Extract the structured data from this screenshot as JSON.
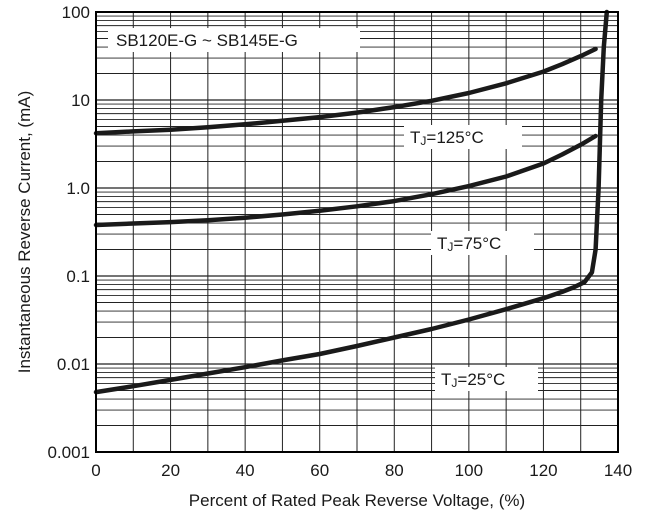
{
  "chart_data": {
    "type": "line",
    "title": "SB120E-G ~ SB145E-G",
    "xlabel": "Percent of Rated Peak Reverse Voltage, (%)",
    "ylabel": "Instantaneous Reverse Current, (mA)",
    "xlim": [
      0,
      140
    ],
    "ylim": [
      0.001,
      100
    ],
    "yscale": "log",
    "grid": true,
    "x_ticks": [
      "0",
      "20",
      "40",
      "60",
      "80",
      "100",
      "120",
      "140"
    ],
    "y_ticks": [
      {
        "value": 0.001,
        "label": "0.001"
      },
      {
        "value": 0.01,
        "label": "0.01"
      },
      {
        "value": 0.1,
        "label": "0.1"
      },
      {
        "value": 1,
        "label": "1.0"
      },
      {
        "value": 10,
        "label": "10"
      },
      {
        "value": 100,
        "label": "100"
      }
    ],
    "series": [
      {
        "name": "TJ=125°C",
        "label_sub": "J",
        "label_pre": "T",
        "label_post": "=125°C",
        "x": [
          0,
          10,
          20,
          30,
          40,
          50,
          60,
          70,
          80,
          90,
          100,
          110,
          120,
          125,
          130,
          134
        ],
        "y": [
          4.2,
          4.4,
          4.6,
          4.9,
          5.3,
          5.8,
          6.4,
          7.2,
          8.3,
          9.8,
          12.0,
          15.5,
          21.0,
          25.5,
          31.5,
          38.0
        ]
      },
      {
        "name": "TJ=75°C",
        "label_sub": "J",
        "label_pre": "T",
        "label_post": "=75°C",
        "x": [
          0,
          10,
          20,
          30,
          40,
          50,
          60,
          70,
          80,
          90,
          100,
          110,
          120,
          125,
          130,
          134
        ],
        "y": [
          0.38,
          0.395,
          0.41,
          0.43,
          0.46,
          0.5,
          0.55,
          0.62,
          0.71,
          0.85,
          1.05,
          1.35,
          1.9,
          2.4,
          3.1,
          3.9
        ]
      },
      {
        "name": "TJ=25°C",
        "label_sub": "J",
        "label_pre": "T",
        "label_post": "=25°C",
        "x": [
          0,
          10,
          20,
          30,
          40,
          50,
          60,
          70,
          80,
          90,
          100,
          110,
          120,
          125,
          128,
          131,
          133,
          134,
          134.8,
          135.5,
          136.2,
          137
        ],
        "y": [
          0.0048,
          0.0056,
          0.0066,
          0.0078,
          0.0092,
          0.011,
          0.013,
          0.016,
          0.02,
          0.025,
          0.032,
          0.042,
          0.056,
          0.066,
          0.074,
          0.085,
          0.11,
          0.2,
          1.0,
          10,
          40,
          100
        ]
      }
    ]
  }
}
